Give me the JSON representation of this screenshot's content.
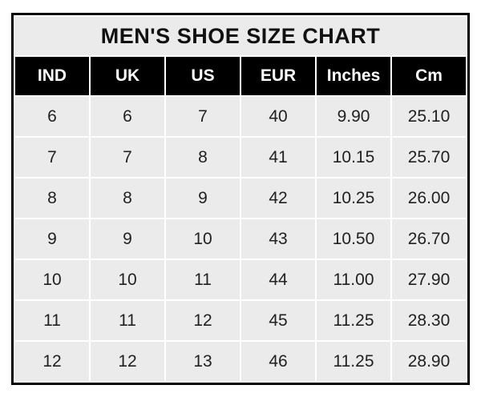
{
  "page": {
    "background": "#ffffff"
  },
  "chart_data": {
    "type": "table",
    "title": "MEN'S SHOE SIZE CHART",
    "columns": [
      "IND",
      "UK",
      "US",
      "EUR",
      "Inches",
      "Cm"
    ],
    "rows": [
      [
        "6",
        "6",
        "7",
        "40",
        "9.90",
        "25.10"
      ],
      [
        "7",
        "7",
        "8",
        "41",
        "10.15",
        "25.70"
      ],
      [
        "8",
        "8",
        "9",
        "42",
        "10.25",
        "26.00"
      ],
      [
        "9",
        "9",
        "10",
        "43",
        "10.50",
        "26.70"
      ],
      [
        "10",
        "10",
        "11",
        "44",
        "11.00",
        "27.90"
      ],
      [
        "11",
        "11",
        "12",
        "45",
        "11.25",
        "28.30"
      ],
      [
        "12",
        "12",
        "13",
        "46",
        "11.25",
        "28.90"
      ]
    ],
    "colors": {
      "header_bg": "#000000",
      "header_text": "#ffffff",
      "title_bg": "#ebebeb",
      "cell_bg": "#ebebeb",
      "gridline": "#ffffff",
      "outer_border": "#000000",
      "text": "#212121"
    },
    "layout": {
      "grid": "on",
      "legend": "none"
    }
  }
}
